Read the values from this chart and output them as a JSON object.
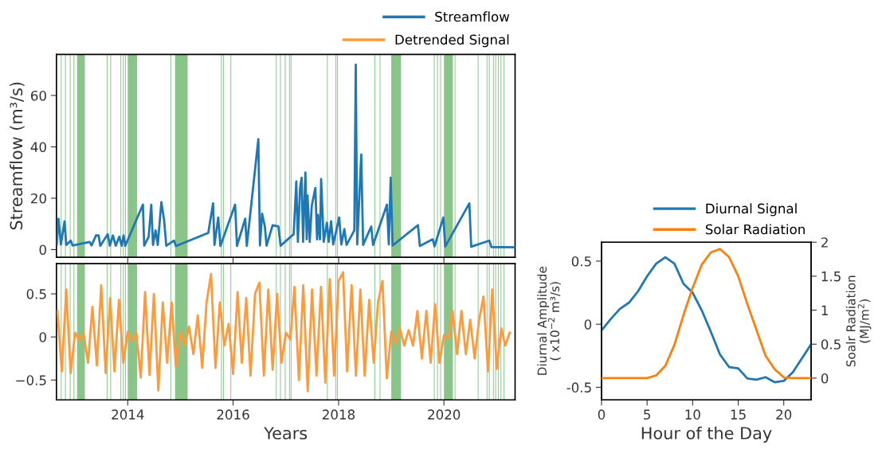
{
  "chart_data": [
    {
      "type": "line",
      "ylabel": "Streamflow (m³/s)",
      "xlim": [
        "2012-08-25",
        "2021-05-08"
      ],
      "ylim": [
        -3,
        76
      ],
      "yticks": [
        0,
        20,
        40,
        60
      ],
      "xticks": [
        {
          "value": "2014-01-01",
          "label": null
        },
        {
          "value": "2016-01-01",
          "label": null
        },
        {
          "value": "2018-01-01",
          "label": null
        },
        {
          "value": "2020-01-01",
          "label": null
        }
      ],
      "tick_labels": "y",
      "legend": "top right",
      "x": [
        "2012-08-27",
        "2012-09-08",
        "2012-09-25",
        "2012-10-20",
        "2012-11-01",
        "2012-12-02",
        "2012-12-15",
        "2013-04-12",
        "2013-04-25",
        "2013-05-26",
        "2013-06-13",
        "2013-06-25",
        "2013-08-15",
        "2013-08-30",
        "2013-09-20",
        "2013-10-10",
        "2013-11-03",
        "2013-11-20",
        "2013-12-03",
        "2013-12-15",
        "2014-04-16",
        "2014-04-25",
        "2014-05-26",
        "2014-06-13",
        "2014-06-25",
        "2014-07-13",
        "2014-07-28",
        "2014-08-22",
        "2014-09-10",
        "2014-09-25",
        "2014-11-18",
        "2014-12-01",
        "2015-07-13",
        "2015-08-15",
        "2015-08-25",
        "2015-09-20",
        "2015-10-05",
        "2016-01-15",
        "2016-01-28",
        "2016-03-25",
        "2016-04-05",
        "2016-06-24",
        "2016-07-05",
        "2016-07-20",
        "2016-08-08",
        "2016-08-20",
        "2016-10-01",
        "2016-11-10",
        "2016-11-25",
        "2017-02-24",
        "2017-03-14",
        "2017-03-25",
        "2017-04-09",
        "2017-04-20",
        "2017-04-30",
        "2017-05-16",
        "2017-05-25",
        "2017-05-31",
        "2017-06-15",
        "2017-06-29",
        "2017-07-24",
        "2017-08-05",
        "2017-08-11",
        "2017-08-25",
        "2017-09-02",
        "2017-09-20",
        "2017-10-12",
        "2017-10-25",
        "2017-11-10",
        "2017-11-25",
        "2018-01-05",
        "2018-01-20",
        "2018-02-10",
        "2018-02-25",
        "2018-04-20",
        "2018-04-30",
        "2018-05-10",
        "2018-06-07",
        "2018-06-20",
        "2018-08-15",
        "2018-08-28",
        "2018-12-02",
        "2018-12-15",
        "2018-12-28",
        "2019-01-10",
        "2019-07-05",
        "2019-07-18",
        "2019-10-15",
        "2019-10-28",
        "2019-12-28",
        "2020-01-10",
        "2020-06-25",
        "2020-07-08",
        "2020-11-10",
        "2020-11-25",
        "2021-05-05"
      ],
      "series": [
        {
          "name": "Streamflow",
          "color": "#1f77b4",
          "values": [
            2.0,
            12,
            2.0,
            11,
            1.8,
            3.5,
            1.6,
            3,
            1.6,
            5.5,
            5.5,
            1.5,
            6,
            1.5,
            5.5,
            1.5,
            5,
            1.5,
            5.5,
            1.5,
            17.5,
            1.5,
            5,
            17.5,
            1.8,
            7.5,
            1.8,
            18.5,
            11.5,
            1.5,
            3.5,
            1.4,
            6.5,
            18,
            1.8,
            12.5,
            1.4,
            17.5,
            1.4,
            12,
            1.4,
            43,
            1.6,
            14,
            9,
            1.5,
            9.5,
            9,
            1.5,
            6,
            26.5,
            3,
            24,
            28,
            3,
            30,
            4,
            21,
            3,
            17,
            24,
            4,
            13.5,
            4,
            27.5,
            3,
            10.5,
            3,
            11,
            2,
            12.5,
            2,
            8,
            1.8,
            7.5,
            72,
            2.0,
            37,
            1.8,
            9,
            1.8,
            17.5,
            2.0,
            28,
            1.6,
            9.5,
            1.4,
            4,
            1.3,
            12.5,
            1.2,
            18,
            1.1,
            3.5,
            1.0,
            0.9
          ]
        }
      ],
      "bands": [
        {
          "axis": "x",
          "from": "2013-01-15",
          "to": "2013-03-10",
          "color": "#7cbf7c"
        },
        {
          "axis": "x",
          "from": "2014-01-01",
          "to": "2014-03-07",
          "color": "#7cbf7c"
        },
        {
          "axis": "x",
          "from": "2014-11-25",
          "to": "2015-02-20",
          "color": "#7cbf7c"
        },
        {
          "axis": "x",
          "from": "2019-01-01",
          "to": "2019-03-10",
          "color": "#7cbf7c"
        },
        {
          "axis": "x",
          "from": "2020-01-01",
          "to": "2020-03-03",
          "color": "#7cbf7c"
        }
      ],
      "ref_lines": [
        {
          "axis": "x",
          "value": "2012-09-27",
          "color": "#7cbf7c"
        },
        {
          "axis": "x",
          "value": "2012-10-26",
          "color": "#7cbf7c"
        },
        {
          "axis": "x",
          "value": "2012-11-28",
          "color": "#7cbf7c"
        },
        {
          "axis": "x",
          "value": "2012-12-24",
          "color": "#7cbf7c"
        },
        {
          "axis": "x",
          "value": "2013-08-11",
          "color": "#7cbf7c"
        },
        {
          "axis": "x",
          "value": "2013-09-05",
          "color": "#7cbf7c"
        },
        {
          "axis": "x",
          "value": "2013-11-14",
          "color": "#7cbf7c"
        },
        {
          "axis": "x",
          "value": "2013-12-02",
          "color": "#7cbf7c"
        },
        {
          "axis": "x",
          "value": "2013-12-16",
          "color": "#7cbf7c"
        },
        {
          "axis": "x",
          "value": "2014-10-26",
          "color": "#7cbf7c"
        },
        {
          "axis": "x",
          "value": "2015-10-12",
          "color": "#7cbf7c"
        },
        {
          "axis": "x",
          "value": "2015-10-26",
          "color": "#7cbf7c"
        },
        {
          "axis": "x",
          "value": "2015-12-16",
          "color": "#7cbf7c"
        },
        {
          "axis": "x",
          "value": "2016-10-26",
          "color": "#7cbf7c"
        },
        {
          "axis": "x",
          "value": "2016-11-24",
          "color": "#7cbf7c"
        },
        {
          "axis": "x",
          "value": "2016-12-27",
          "color": "#7cbf7c"
        },
        {
          "axis": "x",
          "value": "2017-01-26",
          "color": "#7cbf7c"
        },
        {
          "axis": "x",
          "value": "2017-02-06",
          "color": "#7cbf7c"
        },
        {
          "axis": "x",
          "value": "2017-10-15",
          "color": "#7cbf7c"
        },
        {
          "axis": "x",
          "value": "2017-12-13",
          "color": "#7cbf7c"
        },
        {
          "axis": "x",
          "value": "2017-12-24",
          "color": "#7cbf7c"
        },
        {
          "axis": "x",
          "value": "2018-09-09",
          "color": "#7cbf7c"
        },
        {
          "axis": "x",
          "value": "2018-10-15",
          "color": "#7cbf7c"
        },
        {
          "axis": "x",
          "value": "2019-10-26",
          "color": "#7cbf7c"
        },
        {
          "axis": "x",
          "value": "2019-11-17",
          "color": "#7cbf7c"
        },
        {
          "axis": "x",
          "value": "2019-12-09",
          "color": "#7cbf7c"
        },
        {
          "axis": "x",
          "value": "2020-03-18",
          "color": "#7cbf7c"
        },
        {
          "axis": "x",
          "value": "2020-08-25",
          "color": "#7cbf7c"
        },
        {
          "axis": "x",
          "value": "2020-10-26",
          "color": "#7cbf7c"
        },
        {
          "axis": "x",
          "value": "2020-11-10",
          "color": "#7cbf7c"
        },
        {
          "axis": "x",
          "value": "2020-12-09",
          "color": "#7cbf7c"
        },
        {
          "axis": "x",
          "value": "2020-12-24",
          "color": "#7cbf7c"
        },
        {
          "axis": "x",
          "value": "2021-01-12",
          "color": "#7cbf7c"
        },
        {
          "axis": "x",
          "value": "2021-01-30",
          "color": "#7cbf7c"
        },
        {
          "axis": "x",
          "value": "2021-02-20",
          "color": "#7cbf7c"
        }
      ]
    },
    {
      "type": "line",
      "xlabel": "Years",
      "xlim": [
        "2012-08-25",
        "2021-05-08"
      ],
      "ylim": [
        -0.73,
        0.85
      ],
      "yticks": [
        {
          "value": -0.5,
          "label": "−0.5"
        },
        0,
        0.5
      ],
      "xticks": [
        {
          "value": "2014-01-01",
          "label": "2014"
        },
        {
          "value": "2016-01-01",
          "label": "2016"
        },
        {
          "value": "2018-01-01",
          "label": "2018"
        },
        {
          "value": "2020-01-01",
          "label": "2020"
        }
      ],
      "legend": "top right",
      "x": [
        "2012-09",
        "2012-10",
        "2012-11",
        "2012-12",
        "2013-01",
        "2013-02",
        "2013-03",
        "2013-04",
        "2013-05",
        "2013-06",
        "2013-07",
        "2013-08",
        "2013-09",
        "2013-10",
        "2013-11",
        "2013-12",
        "2014-01",
        "2014-02",
        "2014-03",
        "2014-04",
        "2014-05",
        "2014-06",
        "2014-07",
        "2014-08",
        "2014-09",
        "2014-10",
        "2014-11",
        "2014-12",
        "2015-01",
        "2015-02",
        "2015-03",
        "2015-04",
        "2015-05",
        "2015-06",
        "2015-07",
        "2015-08",
        "2015-09",
        "2015-10",
        "2015-11",
        "2015-12",
        "2016-01",
        "2016-02",
        "2016-03",
        "2016-04",
        "2016-05",
        "2016-06",
        "2016-07",
        "2016-08",
        "2016-09",
        "2016-10",
        "2016-11",
        "2016-12",
        "2017-01",
        "2017-02",
        "2017-03",
        "2017-04",
        "2017-05",
        "2017-06",
        "2017-07",
        "2017-08",
        "2017-09",
        "2017-10",
        "2017-11",
        "2017-12",
        "2018-01",
        "2018-02",
        "2018-03",
        "2018-04",
        "2018-05",
        "2018-06",
        "2018-07",
        "2018-08",
        "2018-09",
        "2018-10",
        "2018-11",
        "2018-12",
        "2019-01",
        "2019-02",
        "2019-03",
        "2019-04",
        "2019-05",
        "2019-06",
        "2019-07",
        "2019-08",
        "2019-09",
        "2019-10",
        "2019-11",
        "2019-12",
        "2020-01",
        "2020-02",
        "2020-03",
        "2020-04",
        "2020-05",
        "2020-06",
        "2020-07",
        "2020-08",
        "2020-09",
        "2020-10",
        "2020-11",
        "2020-12",
        "2021-01",
        "2021-02",
        "2021-03",
        "2021-04"
      ],
      "series": [
        {
          "name": "Detrended Signal",
          "color": "#ff9a3c",
          "values": [
            0.3,
            -0.4,
            0.55,
            -0.42,
            0.05,
            -0.04,
            0.04,
            -0.3,
            0.35,
            -0.33,
            0.6,
            -0.42,
            0.45,
            -0.4,
            0.43,
            -0.3,
            0.06,
            -0.05,
            0.05,
            -0.47,
            0.52,
            -0.44,
            0.5,
            -0.62,
            0.4,
            -0.3,
            0.4,
            -0.35,
            0.06,
            -0.1,
            0.12,
            -0.2,
            0.25,
            -0.36,
            0.4,
            0.73,
            -0.36,
            0.4,
            -0.1,
            0.15,
            -0.43,
            0.52,
            -0.3,
            0.45,
            -0.45,
            0.5,
            0.63,
            -0.45,
            0.55,
            -0.38,
            0.5,
            -0.3,
            0.05,
            -0.03,
            0.58,
            -0.5,
            0.6,
            -0.63,
            0.55,
            -0.45,
            0.58,
            -0.53,
            0.67,
            -0.45,
            0.65,
            0.75,
            -0.4,
            0.6,
            -0.45,
            0.55,
            -0.45,
            0.43,
            -0.3,
            0.4,
            0.65,
            -0.48,
            0.06,
            -0.08,
            0.1,
            -0.1,
            0.08,
            -0.1,
            0.3,
            -0.25,
            0.3,
            -0.3,
            0.38,
            -0.3,
            0.02,
            -0.02,
            0.3,
            -0.2,
            0.3,
            -0.2,
            0.2,
            -0.25,
            0.2,
            0.47,
            -0.4,
            0.55,
            -0.37,
            0.1,
            -0.1,
            0.05
          ]
        }
      ],
      "bands": [
        {
          "axis": "x",
          "from": "2013-01-15",
          "to": "2013-03-10",
          "color": "#7cbf7c"
        },
        {
          "axis": "x",
          "from": "2014-01-01",
          "to": "2014-03-07",
          "color": "#7cbf7c"
        },
        {
          "axis": "x",
          "from": "2014-11-25",
          "to": "2015-02-20",
          "color": "#7cbf7c"
        },
        {
          "axis": "x",
          "from": "2019-01-01",
          "to": "2019-03-10",
          "color": "#7cbf7c"
        },
        {
          "axis": "x",
          "from": "2020-01-01",
          "to": "2020-03-03",
          "color": "#7cbf7c"
        }
      ],
      "ref_lines": [
        {
          "axis": "x",
          "value": "2012-09-27",
          "color": "#7cbf7c"
        },
        {
          "axis": "x",
          "value": "2012-10-26",
          "color": "#7cbf7c"
        },
        {
          "axis": "x",
          "value": "2012-11-28",
          "color": "#7cbf7c"
        },
        {
          "axis": "x",
          "value": "2012-12-24",
          "color": "#7cbf7c"
        },
        {
          "axis": "x",
          "value": "2013-08-11",
          "color": "#7cbf7c"
        },
        {
          "axis": "x",
          "value": "2013-09-05",
          "color": "#7cbf7c"
        },
        {
          "axis": "x",
          "value": "2013-11-14",
          "color": "#7cbf7c"
        },
        {
          "axis": "x",
          "value": "2013-12-02",
          "color": "#7cbf7c"
        },
        {
          "axis": "x",
          "value": "2013-12-16",
          "color": "#7cbf7c"
        },
        {
          "axis": "x",
          "value": "2014-10-26",
          "color": "#7cbf7c"
        },
        {
          "axis": "x",
          "value": "2015-10-12",
          "color": "#7cbf7c"
        },
        {
          "axis": "x",
          "value": "2015-10-26",
          "color": "#7cbf7c"
        },
        {
          "axis": "x",
          "value": "2015-12-16",
          "color": "#7cbf7c"
        },
        {
          "axis": "x",
          "value": "2016-10-26",
          "color": "#7cbf7c"
        },
        {
          "axis": "x",
          "value": "2016-11-24",
          "color": "#7cbf7c"
        },
        {
          "axis": "x",
          "value": "2016-12-27",
          "color": "#7cbf7c"
        },
        {
          "axis": "x",
          "value": "2017-01-26",
          "color": "#7cbf7c"
        },
        {
          "axis": "x",
          "value": "2017-02-06",
          "color": "#7cbf7c"
        },
        {
          "axis": "x",
          "value": "2017-10-15",
          "color": "#7cbf7c"
        },
        {
          "axis": "x",
          "value": "2017-12-13",
          "color": "#7cbf7c"
        },
        {
          "axis": "x",
          "value": "2017-12-24",
          "color": "#7cbf7c"
        },
        {
          "axis": "x",
          "value": "2018-09-09",
          "color": "#7cbf7c"
        },
        {
          "axis": "x",
          "value": "2018-10-15",
          "color": "#7cbf7c"
        },
        {
          "axis": "x",
          "value": "2019-10-26",
          "color": "#7cbf7c"
        },
        {
          "axis": "x",
          "value": "2019-11-17",
          "color": "#7cbf7c"
        },
        {
          "axis": "x",
          "value": "2019-12-09",
          "color": "#7cbf7c"
        },
        {
          "axis": "x",
          "value": "2020-03-18",
          "color": "#7cbf7c"
        },
        {
          "axis": "x",
          "value": "2020-08-25",
          "color": "#7cbf7c"
        },
        {
          "axis": "x",
          "value": "2020-10-26",
          "color": "#7cbf7c"
        },
        {
          "axis": "x",
          "value": "2020-11-10",
          "color": "#7cbf7c"
        },
        {
          "axis": "x",
          "value": "2020-12-09",
          "color": "#7cbf7c"
        },
        {
          "axis": "x",
          "value": "2020-12-24",
          "color": "#7cbf7c"
        },
        {
          "axis": "x",
          "value": "2021-01-12",
          "color": "#7cbf7c"
        },
        {
          "axis": "x",
          "value": "2021-01-30",
          "color": "#7cbf7c"
        },
        {
          "axis": "x",
          "value": "2021-02-20",
          "color": "#7cbf7c"
        }
      ]
    },
    {
      "type": "line",
      "xlabel": "Hour of the Day",
      "ylabel": "Diurnal Amplitude\n( x10$^{−2}$ m³/s)",
      "y2label": "Soalr Radiation\n(MJ/m$^{2}$)",
      "xlim": [
        0,
        23
      ],
      "xticks": [
        0,
        5,
        10,
        15,
        20
      ],
      "ylim": [
        -0.6,
        0.65
      ],
      "yticks": [
        {
          "value": -0.5,
          "label": "-0.5"
        },
        0,
        0.5
      ],
      "y2lim": [
        -0.32,
        2
      ],
      "y2ticks": [
        0,
        0.5,
        1,
        1.5,
        2
      ],
      "legend": "top right",
      "x": [
        0,
        1,
        2,
        3,
        4,
        5,
        6,
        7,
        8,
        9,
        10,
        11,
        12,
        13,
        14,
        15,
        16,
        17,
        18,
        19,
        20,
        21,
        22,
        23
      ],
      "series": [
        {
          "name": "Diurnal Signal",
          "color": "#1f77b4",
          "values": [
            -0.05,
            0.04,
            0.12,
            0.17,
            0.26,
            0.38,
            0.48,
            0.53,
            0.48,
            0.32,
            0.25,
            0.11,
            -0.06,
            -0.24,
            -0.34,
            -0.35,
            -0.43,
            -0.44,
            -0.42,
            -0.46,
            -0.45,
            -0.38,
            -0.27,
            -0.16
          ]
        },
        {
          "name": "Solar Radiation",
          "color": "#ff7f0e",
          "axis": "y2",
          "values": [
            0,
            0,
            0,
            0,
            0,
            0,
            0.04,
            0.18,
            0.49,
            0.93,
            1.33,
            1.67,
            1.85,
            1.9,
            1.78,
            1.5,
            1.09,
            0.71,
            0.33,
            0.13,
            0.01,
            0,
            0,
            0
          ]
        }
      ]
    }
  ]
}
